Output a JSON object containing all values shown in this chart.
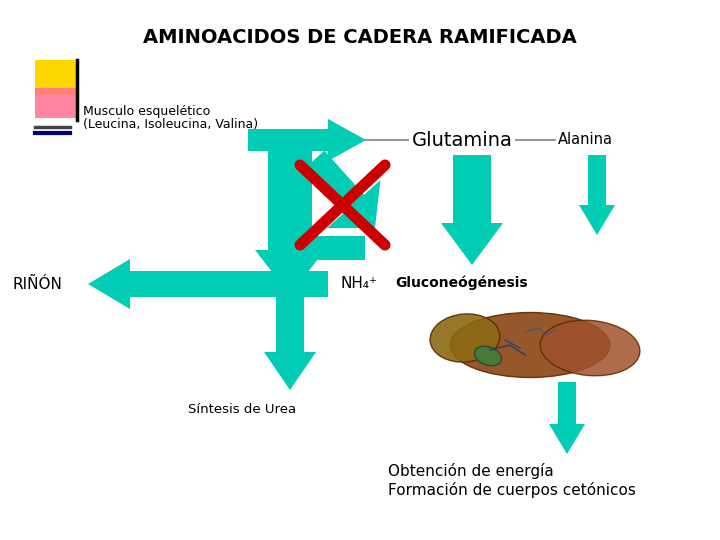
{
  "title": "AMINOACIDOS DE CADERA RAMIFICADA",
  "title_fontsize": 14,
  "bg_color": "#ffffff",
  "teal": "#00CDB4",
  "red": "#CC0000",
  "text_color": "#000000",
  "labels": {
    "glutamina": "Glutamina",
    "alanina": "Alanina",
    "gluconeogenesis": "Gluconeógénesis",
    "nh4": "NH₄⁺",
    "rinon": "RIÑÓN",
    "sintesis": "Síntesis de Urea",
    "obtencion": "Obtención de energía\nFormación de cuerpos cetónicos",
    "musculo_line1": "Musculo esquelético",
    "musculo_line2": "(Leucina, Isoleucina, Valina)"
  }
}
